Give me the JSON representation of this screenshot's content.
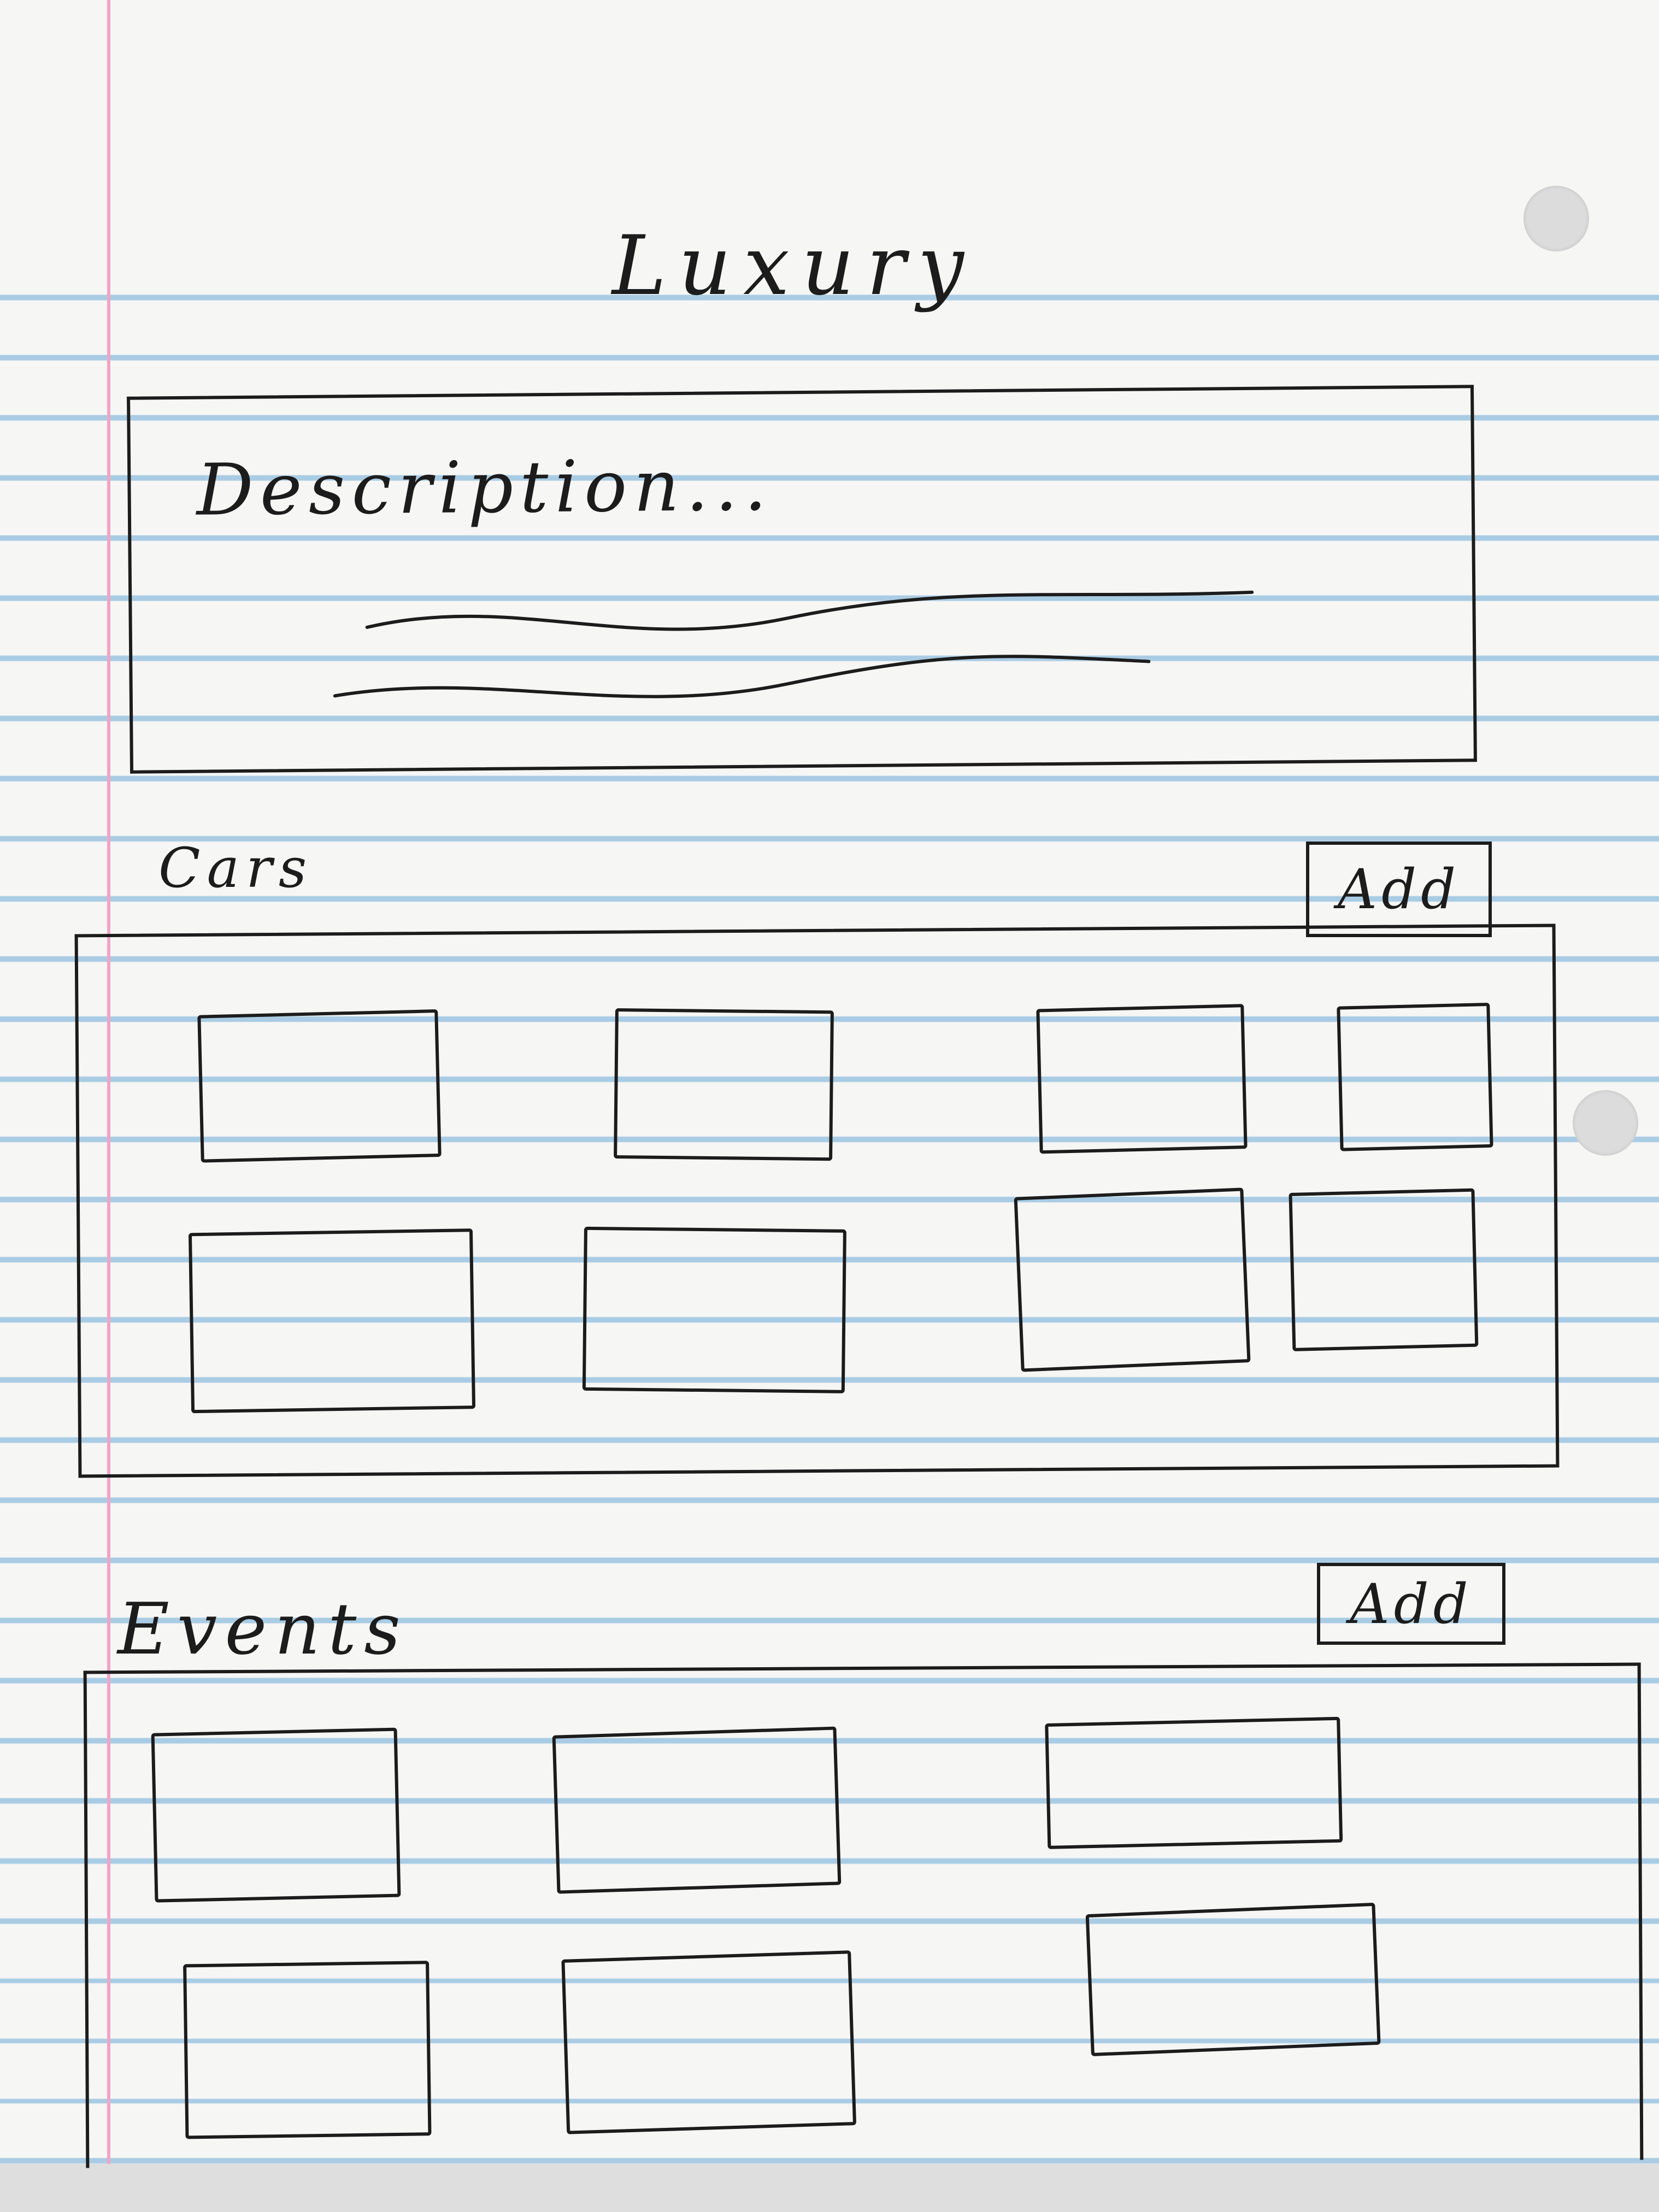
{
  "header": {
    "title": "Luxury"
  },
  "description": {
    "text": "Description..."
  },
  "cars": {
    "label": "Cars",
    "add_label": "Add",
    "card_count": 8
  },
  "events": {
    "label": "Events",
    "add_label": "Add",
    "card_count": 6
  }
}
